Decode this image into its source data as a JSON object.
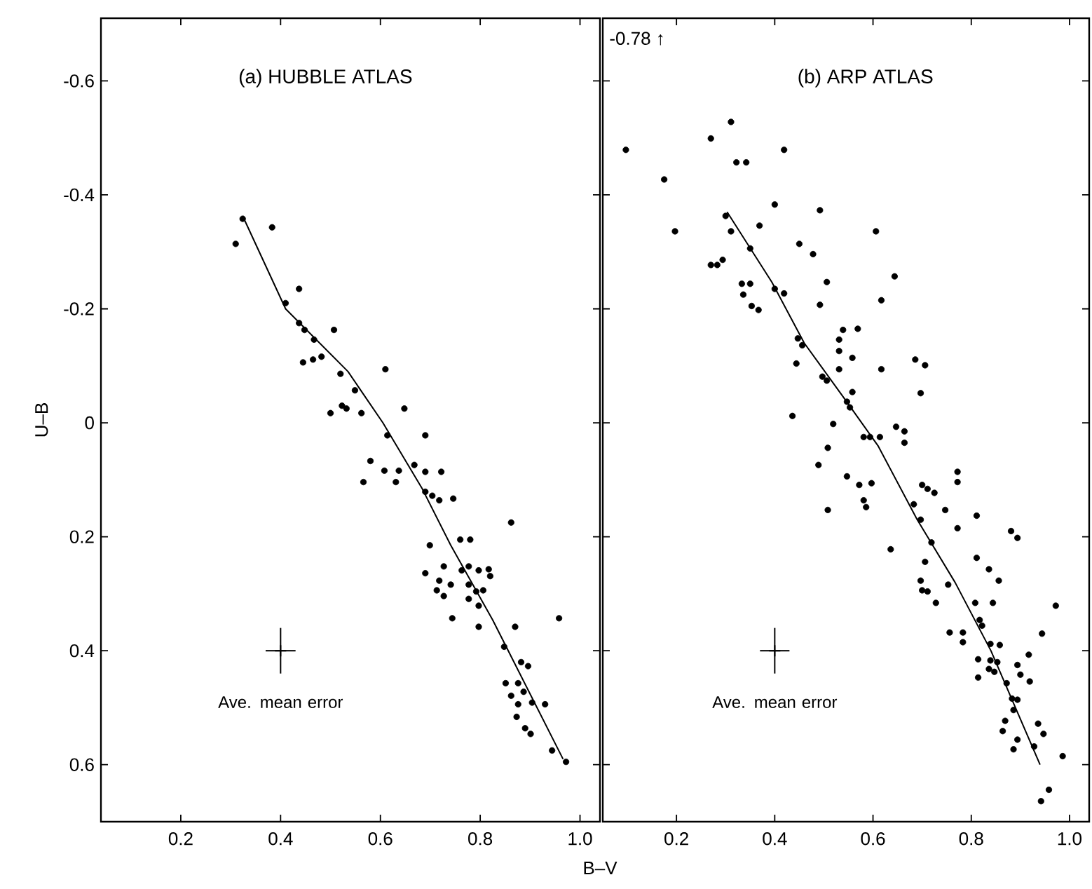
{
  "chart_data": [
    {
      "type": "scatter",
      "title": "(a) HUBBLE ATLAS",
      "xlabel": "B–V",
      "ylabel": "U–B",
      "xlim": [
        0.04,
        1.04
      ],
      "ylim": [
        0.7,
        -0.71
      ],
      "xticks": [
        {
          "value": 0.2,
          "label": "0.2"
        },
        {
          "value": 0.4,
          "label": "0.4"
        },
        {
          "value": 0.6,
          "label": "0.6"
        },
        {
          "value": 0.8,
          "label": "0.8"
        },
        {
          "value": 1.0,
          "label": "1.0"
        }
      ],
      "yticks": [
        {
          "value": -0.6,
          "label": "-0.6"
        },
        {
          "value": -0.4,
          "label": "-0.4"
        },
        {
          "value": -0.2,
          "label": "-0.2"
        },
        {
          "value": 0,
          "label": "0"
        },
        {
          "value": 0.2,
          "label": "0.2"
        },
        {
          "value": 0.4,
          "label": "0.4"
        },
        {
          "value": 0.6,
          "label": "0.6"
        }
      ],
      "annotations": [
        "Ave. mean error"
      ],
      "series": [
        {
          "marker": "circle",
          "color": "#000000",
          "x": [
            0.31,
            0.383,
            0.324,
            0.437,
            0.41,
            0.437,
            0.448,
            0.507,
            0.467,
            0.445,
            0.465,
            0.482,
            0.52,
            0.61,
            0.549,
            0.5,
            0.523,
            0.532,
            0.562,
            0.648,
            0.69,
            0.614,
            0.58,
            0.566,
            0.608,
            0.637,
            0.631,
            0.668,
            0.69,
            0.722,
            0.69,
            0.704,
            0.718,
            0.746,
            0.862,
            0.699,
            0.76,
            0.78,
            0.69,
            0.727,
            0.718,
            0.713,
            0.727,
            0.741,
            0.763,
            0.777,
            0.797,
            0.82,
            0.817,
            0.777,
            0.792,
            0.806,
            0.777,
            0.797,
            0.744,
            0.797,
            0.87,
            0.958,
            0.848,
            0.882,
            0.896,
            0.851,
            0.876,
            0.862,
            0.887,
            0.876,
            0.904,
            0.93,
            0.873,
            0.89,
            0.901,
            0.944,
            0.972
          ],
          "values": [
            -0.314,
            -0.343,
            -0.358,
            -0.235,
            -0.21,
            -0.175,
            -0.163,
            -0.163,
            -0.146,
            -0.106,
            -0.111,
            -0.116,
            -0.086,
            -0.094,
            -0.057,
            -0.017,
            -0.03,
            -0.025,
            -0.017,
            -0.025,
            0.022,
            0.022,
            0.067,
            0.104,
            0.084,
            0.084,
            0.104,
            0.074,
            0.086,
            0.086,
            0.121,
            0.128,
            0.136,
            0.133,
            0.175,
            0.215,
            0.205,
            0.205,
            0.264,
            0.252,
            0.277,
            0.294,
            0.304,
            0.284,
            0.259,
            0.252,
            0.259,
            0.269,
            0.257,
            0.284,
            0.296,
            0.294,
            0.309,
            0.321,
            0.343,
            0.358,
            0.358,
            0.343,
            0.393,
            0.42,
            0.427,
            0.457,
            0.457,
            0.479,
            0.472,
            0.494,
            0.491,
            0.494,
            0.516,
            0.536,
            0.546,
            0.575,
            0.595
          ]
        },
        {
          "type": "line",
          "marker": "none",
          "color": "#000000",
          "x": [
            0.324,
            0.41,
            0.535,
            0.605,
            0.684,
            0.741,
            0.825,
            0.966
          ],
          "values": [
            -0.363,
            -0.2,
            -0.09,
            0.0,
            0.116,
            0.215,
            0.346,
            0.59
          ]
        },
        {
          "type": "scatter",
          "marker": "cross",
          "color": "#000000",
          "x": [
            0.4
          ],
          "values": [
            0.4
          ],
          "errors": [
            0.04
          ],
          "xerrors": [
            0.03
          ]
        }
      ]
    },
    {
      "type": "scatter",
      "title": "(b) ARP ATLAS",
      "tick_labels": "x",
      "xlim": [
        0.05,
        1.04
      ],
      "ylim": [
        0.7,
        -0.71
      ],
      "xticks": [
        {
          "value": 0.2,
          "label": "0.2"
        },
        {
          "value": 0.4,
          "label": "0.4"
        },
        {
          "value": 0.6,
          "label": "0.6"
        },
        {
          "value": 0.8,
          "label": "0.8"
        },
        {
          "value": 1.0,
          "label": "1.0"
        }
      ],
      "yticks": [
        {
          "value": -0.6,
          "label": null
        },
        {
          "value": -0.4,
          "label": null
        },
        {
          "value": -0.2,
          "label": null
        },
        {
          "value": 0,
          "label": null
        },
        {
          "value": 0.2,
          "label": null
        },
        {
          "value": 0.4,
          "label": null
        },
        {
          "value": 0.6,
          "label": null
        }
      ],
      "annotations": [
        "-0.78 ↑",
        "Ave. mean error"
      ],
      "series": [
        {
          "marker": "circle",
          "color": "#000000",
          "x": [
            0.097,
            0.175,
            0.197,
            0.27,
            0.311,
            0.322,
            0.342,
            0.419,
            0.3,
            0.311,
            0.369,
            0.4,
            0.492,
            0.35,
            0.45,
            0.478,
            0.27,
            0.283,
            0.294,
            0.606,
            0.644,
            0.506,
            0.333,
            0.35,
            0.4,
            0.419,
            0.336,
            0.353,
            0.367,
            0.492,
            0.617,
            0.539,
            0.569,
            0.447,
            0.456,
            0.531,
            0.531,
            0.444,
            0.531,
            0.558,
            0.617,
            0.686,
            0.706,
            0.497,
            0.506,
            0.697,
            0.558,
            0.547,
            0.553,
            0.436,
            0.519,
            0.581,
            0.594,
            0.614,
            0.647,
            0.664,
            0.664,
            0.508,
            0.489,
            0.508,
            0.547,
            0.572,
            0.597,
            0.581,
            0.586,
            0.636,
            0.7,
            0.711,
            0.725,
            0.683,
            0.697,
            0.747,
            0.772,
            0.772,
            0.772,
            0.811,
            0.719,
            0.706,
            0.697,
            0.7,
            0.711,
            0.728,
            0.753,
            0.811,
            0.836,
            0.856,
            0.881,
            0.894,
            0.808,
            0.844,
            0.756,
            0.783,
            0.783,
            0.817,
            0.822,
            0.972,
            0.944,
            0.839,
            0.858,
            0.814,
            0.839,
            0.853,
            0.814,
            0.836,
            0.847,
            0.872,
            0.894,
            0.9,
            0.917,
            0.919,
            0.883,
            0.894,
            0.886,
            0.869,
            0.864,
            0.894,
            0.936,
            0.947,
            0.886,
            0.928,
            0.986,
            0.958,
            0.942
          ],
          "values": [
            -0.479,
            -0.427,
            -0.336,
            -0.499,
            -0.528,
            -0.457,
            -0.457,
            -0.479,
            -0.363,
            -0.336,
            -0.346,
            -0.383,
            -0.373,
            -0.306,
            -0.314,
            -0.296,
            -0.277,
            -0.277,
            -0.286,
            -0.336,
            -0.257,
            -0.247,
            -0.244,
            -0.244,
            -0.235,
            -0.227,
            -0.225,
            -0.205,
            -0.198,
            -0.207,
            -0.215,
            -0.163,
            -0.165,
            -0.148,
            -0.136,
            -0.146,
            -0.126,
            -0.104,
            -0.094,
            -0.114,
            -0.094,
            -0.111,
            -0.101,
            -0.081,
            -0.074,
            -0.052,
            -0.054,
            -0.037,
            -0.027,
            -0.012,
            0.002,
            0.025,
            0.025,
            0.025,
            0.007,
            0.015,
            0.035,
            0.044,
            0.074,
            0.153,
            0.094,
            0.109,
            0.106,
            0.136,
            0.148,
            0.222,
            0.109,
            0.116,
            0.123,
            0.143,
            0.17,
            0.153,
            0.104,
            0.086,
            0.185,
            0.163,
            0.21,
            0.244,
            0.277,
            0.294,
            0.296,
            0.316,
            0.284,
            0.237,
            0.257,
            0.277,
            0.19,
            0.202,
            0.316,
            0.316,
            0.368,
            0.368,
            0.385,
            0.346,
            0.356,
            0.321,
            0.37,
            0.388,
            0.39,
            0.415,
            0.417,
            0.42,
            0.447,
            0.432,
            0.437,
            0.457,
            0.425,
            0.442,
            0.407,
            0.454,
            0.484,
            0.486,
            0.504,
            0.523,
            0.541,
            0.556,
            0.528,
            0.546,
            0.573,
            0.568,
            0.585,
            0.644,
            0.664
          ]
        },
        {
          "type": "line",
          "marker": "none",
          "color": "#000000",
          "x": [
            0.303,
            0.394,
            0.46,
            0.544,
            0.61,
            0.69,
            0.767,
            0.84,
            0.94
          ],
          "values": [
            -0.37,
            -0.247,
            -0.14,
            -0.04,
            0.04,
            0.17,
            0.28,
            0.4,
            0.6
          ]
        },
        {
          "type": "scatter",
          "marker": "cross",
          "color": "#000000",
          "x": [
            0.4
          ],
          "values": [
            0.4
          ],
          "errors": [
            0.04
          ],
          "xerrors": [
            0.03
          ]
        }
      ]
    }
  ]
}
